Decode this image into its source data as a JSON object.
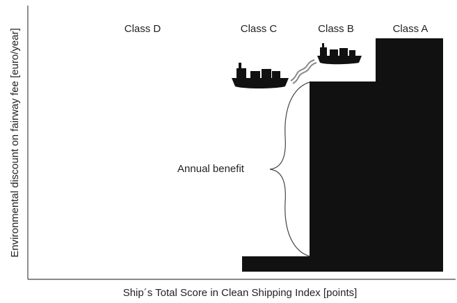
{
  "classes": [
    "Class D",
    "Class C",
    "Class B",
    "Class A"
  ],
  "axes": {
    "x_label": "Ship´s Total Score in Clean Shipping Index [points]",
    "y_label": "Environmental discount on fairway fee [euro/year]"
  },
  "annotation": "Annual benefit"
}
